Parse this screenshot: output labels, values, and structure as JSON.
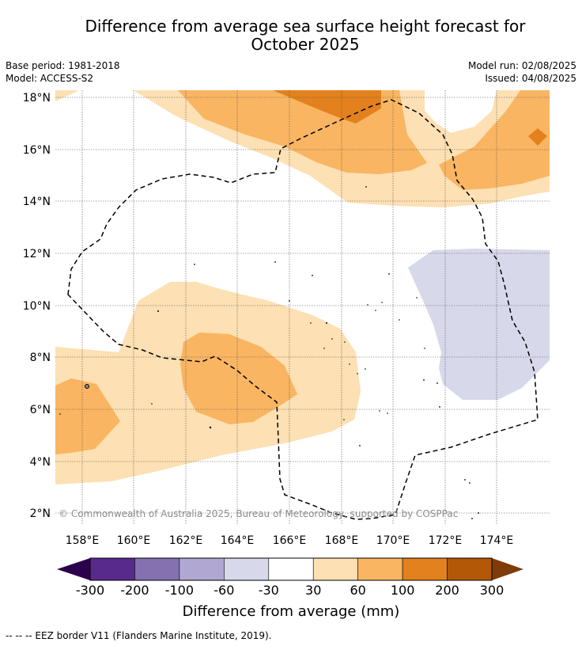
{
  "title_line1": "Difference from average sea surface height forecast for",
  "title_line2": "October 2025",
  "base_period": "Base period: 1981-2018",
  "model": "Model: ACCESS-S2",
  "model_run": "Model run: 02/08/2025",
  "issued": "Issued: 04/08/2025",
  "lat_labels": [
    "18°N",
    "16°N",
    "14°N",
    "12°N",
    "10°N",
    "8°N",
    "6°N",
    "4°N",
    "2°N"
  ],
  "lon_labels": [
    "158°E",
    "160°E",
    "162°E",
    "164°E",
    "166°E",
    "168°E",
    "170°E",
    "172°E",
    "174°E"
  ],
  "copyright": "© Commonwealth of Australia 2025, Bureau of Meteorology, supported by COSPPac",
  "colorbar": {
    "ticks": [
      "-300",
      "-200",
      "-100",
      "-60",
      "-30",
      "30",
      "60",
      "100",
      "200",
      "300"
    ],
    "colors": [
      "#582a8c",
      "#8472b0",
      "#b0a8d2",
      "#d8d8eb",
      "#ffffff",
      "#fde0b3",
      "#f9b562",
      "#e2811d",
      "#b35806"
    ],
    "extend_low_color": "#2d004b",
    "extend_high_color": "#7f3b08",
    "title": "Difference from average (mm)"
  },
  "eez_legend": "-- -- -- EEZ border V11 (Flanders Marine Institute, 2019)."
}
